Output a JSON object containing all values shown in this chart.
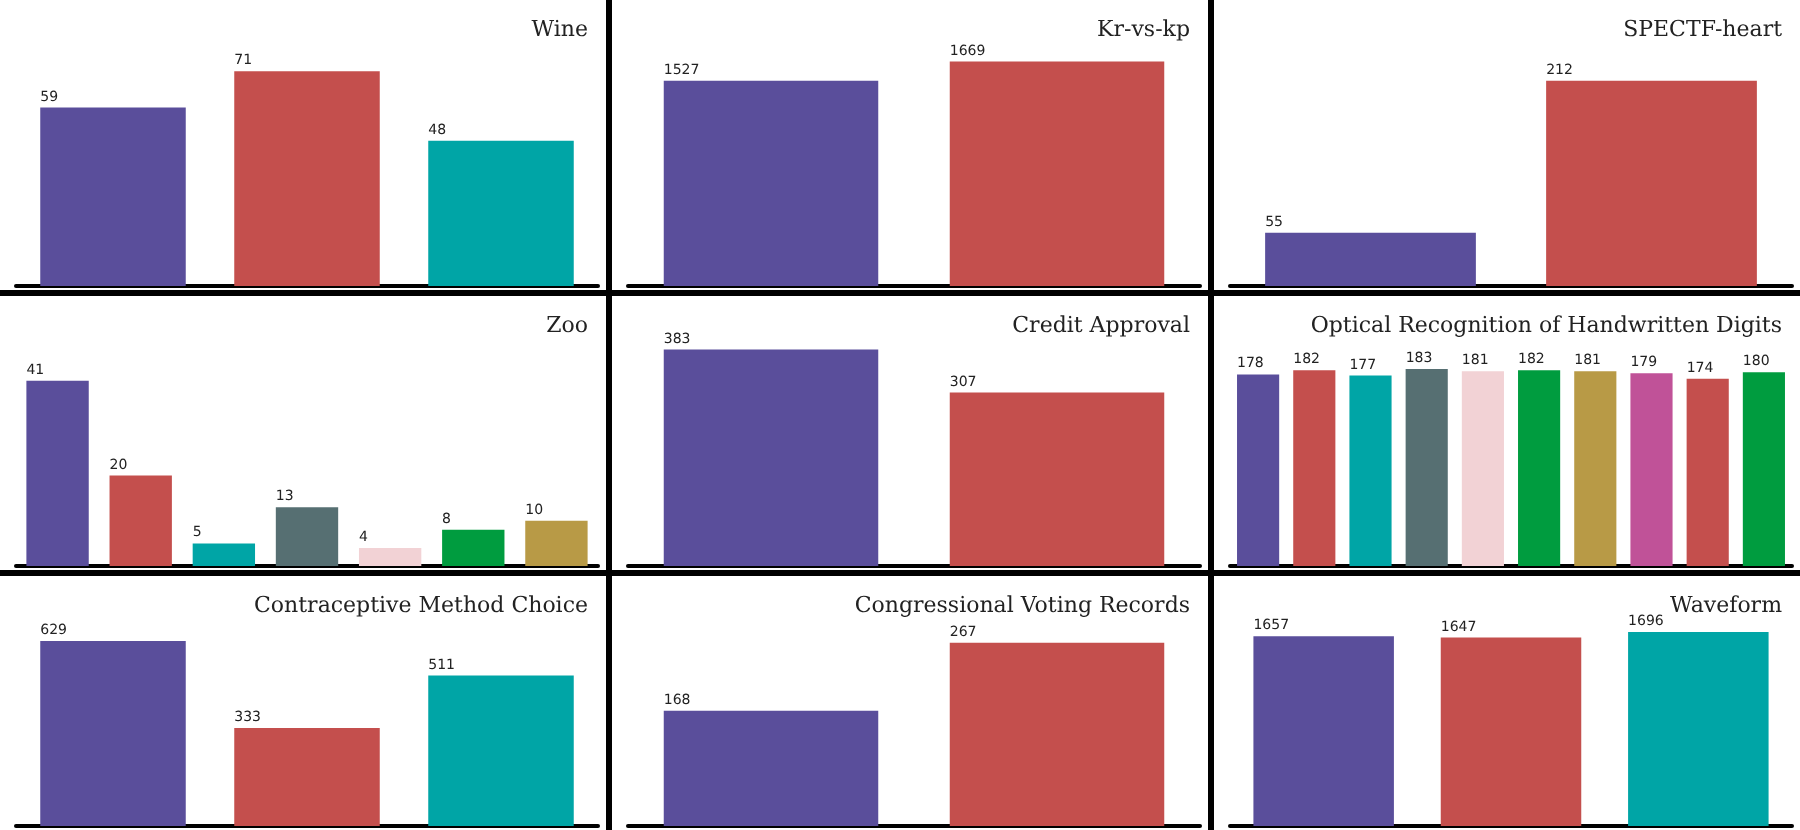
{
  "chart_data": [
    {
      "type": "bar",
      "title": "Wine",
      "categories": [
        null,
        null,
        null
      ],
      "values": [
        59,
        71,
        48
      ],
      "colors": [
        "#5a4e9b",
        "#c44f4d",
        "#00a5a6"
      ],
      "data_labels": true
    },
    {
      "type": "bar",
      "title": "Kr-vs-kp",
      "categories": [
        null,
        null
      ],
      "values": [
        1527,
        1669
      ],
      "colors": [
        "#5a4e9b",
        "#c44f4d"
      ],
      "data_labels": true
    },
    {
      "type": "bar",
      "title": "SPECTF-heart",
      "categories": [
        null,
        null
      ],
      "values": [
        55,
        212
      ],
      "colors": [
        "#5a4e9b",
        "#c44f4d"
      ],
      "data_labels": true
    },
    {
      "type": "bar",
      "title": "Zoo",
      "categories": [
        null,
        null,
        null,
        null,
        null,
        null,
        null
      ],
      "values": [
        41,
        20,
        5,
        13,
        4,
        8,
        10
      ],
      "colors": [
        "#5a4e9b",
        "#c44f4d",
        "#00a5a6",
        "#566f72",
        "#f2d2d5",
        "#009c3f",
        "#b89a46"
      ],
      "data_labels": true
    },
    {
      "type": "bar",
      "title": "Credit Approval",
      "categories": [
        null,
        null
      ],
      "values": [
        383,
        307
      ],
      "colors": [
        "#5a4e9b",
        "#c44f4d"
      ],
      "data_labels": true
    },
    {
      "type": "bar",
      "title": "Optical Recognition of Handwritten Digits",
      "categories": [
        null,
        null,
        null,
        null,
        null,
        null,
        null,
        null,
        null,
        null
      ],
      "values": [
        178,
        182,
        177,
        183,
        181,
        182,
        181,
        179,
        174,
        180
      ],
      "colors": [
        "#5a4e9b",
        "#c44f4d",
        "#00a5a6",
        "#566f72",
        "#f2d2d5",
        "#009c3f",
        "#b89a46",
        "#c05298",
        "#c44f4d",
        "#009c3f"
      ],
      "data_labels": true
    },
    {
      "type": "bar",
      "title": "Contraceptive Method Choice",
      "categories": [
        null,
        null,
        null
      ],
      "values": [
        629,
        333,
        511
      ],
      "colors": [
        "#5a4e9b",
        "#c44f4d",
        "#00a5a6"
      ],
      "data_labels": true
    },
    {
      "type": "bar",
      "title": "Congressional Voting Records",
      "categories": [
        null,
        null
      ],
      "values": [
        168,
        267
      ],
      "colors": [
        "#5a4e9b",
        "#c44f4d"
      ],
      "data_labels": true
    },
    {
      "type": "bar",
      "title": "Waveform",
      "categories": [
        null,
        null,
        null
      ],
      "values": [
        1657,
        1647,
        1696
      ],
      "colors": [
        "#5a4e9b",
        "#c44f4d",
        "#00a5a6"
      ],
      "data_labels": true
    }
  ]
}
